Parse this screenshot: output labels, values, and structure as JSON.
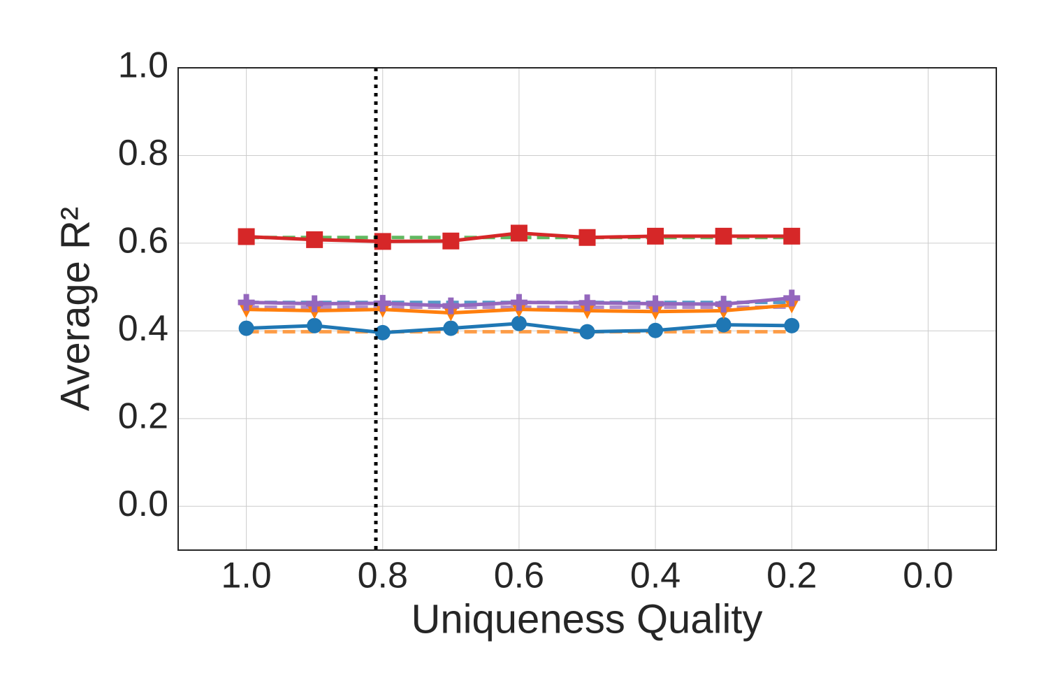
{
  "chart_data": {
    "type": "line",
    "xlabel": "Uniqueness Quality",
    "ylabel": "Average R²",
    "x": [
      1.0,
      0.9,
      0.8,
      0.7,
      0.6,
      0.5,
      0.4,
      0.3,
      0.2
    ],
    "xlim": [
      1.1,
      -0.1
    ],
    "xticks": [
      {
        "value": 1.0,
        "label": "1.0"
      },
      0.8,
      0.6,
      0.4,
      0.2,
      {
        "value": 0.0,
        "label": "0.0"
      }
    ],
    "ylim": [
      -0.1,
      1.0
    ],
    "yticks": [
      {
        "value": 0.0,
        "label": "0.0"
      },
      0.2,
      0.4,
      0.6,
      0.8,
      {
        "value": 1.0,
        "label": "1.0"
      }
    ],
    "grid": true,
    "vline": 0.81,
    "series": [
      {
        "color": "#ff7f0e",
        "style": "dashed",
        "marker": "none",
        "values": [
          0.398,
          0.398,
          0.398,
          0.398,
          0.398,
          0.398,
          0.398,
          0.398,
          0.398
        ]
      },
      {
        "color": "#1f77b4",
        "style": "dashed",
        "marker": "none",
        "values": [
          0.465,
          0.465,
          0.465,
          0.465,
          0.465,
          0.465,
          0.465,
          0.465,
          0.465
        ]
      },
      {
        "color": "#9467bd",
        "style": "dashed",
        "marker": "none",
        "values": [
          0.454,
          0.454,
          0.454,
          0.454,
          0.454,
          0.454,
          0.454,
          0.454,
          0.454
        ]
      },
      {
        "color": "#2ca02c",
        "style": "dashed",
        "marker": "none",
        "values": [
          0.613,
          0.613,
          0.613,
          0.613,
          0.613,
          0.613,
          0.613,
          0.613,
          0.613
        ]
      },
      {
        "color": "#1f77b4",
        "style": "solid",
        "marker": "circle",
        "values": [
          0.406,
          0.412,
          0.396,
          0.406,
          0.417,
          0.398,
          0.401,
          0.414,
          0.412
        ]
      },
      {
        "color": "#ff7f0e",
        "style": "solid",
        "marker": "triangle-down",
        "values": [
          0.449,
          0.446,
          0.449,
          0.441,
          0.449,
          0.446,
          0.444,
          0.446,
          0.459
        ]
      },
      {
        "color": "#9467bd",
        "style": "solid",
        "marker": "plus",
        "values": [
          0.465,
          0.462,
          0.463,
          0.457,
          0.465,
          0.464,
          0.462,
          0.461,
          0.475
        ]
      },
      {
        "color": "#d62728",
        "style": "solid",
        "marker": "square",
        "values": [
          0.615,
          0.608,
          0.604,
          0.605,
          0.623,
          0.613,
          0.616,
          0.616,
          0.616
        ]
      }
    ]
  }
}
